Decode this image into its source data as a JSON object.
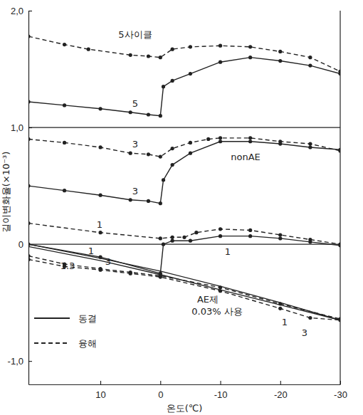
{
  "chart_data": {
    "type": "line",
    "x_label": "온도(℃)",
    "y_label": "길이변화율(×10⁻³)",
    "xlim": [
      22,
      -30
    ],
    "xticks": [
      10,
      0,
      -10,
      -20,
      -30
    ],
    "ylim": [
      -1.2,
      2.0
    ],
    "yticks": [
      {
        "value": 2,
        "label": "2,0"
      },
      {
        "value": 1,
        "label": "1,0"
      },
      0,
      {
        "value": -1,
        "label": "-1,0"
      }
    ],
    "grid": false,
    "hlines": [
      1,
      0
    ],
    "color": "#222222",
    "legend": "bottom-left",
    "legend_entries": [
      {
        "label": "동결",
        "line_style": "solid"
      },
      {
        "label": "융해",
        "line_style": "dashed"
      }
    ],
    "annotations": [
      {
        "text": "nonAE"
      },
      {
        "text": "AE제"
      },
      {
        "text": "0.03% 사용"
      },
      {
        "text": "1.3"
      }
    ],
    "series": [
      {
        "name": "5사이클",
        "line_style": "dashed",
        "marker": "circle",
        "x": [
          22,
          16,
          12,
          5,
          2,
          0,
          -2,
          -5,
          -10,
          -15,
          -20,
          -25,
          -30
        ],
        "values": [
          1.78,
          1.71,
          1.67,
          1.62,
          1.61,
          1.6,
          1.67,
          1.69,
          1.7,
          1.69,
          1.65,
          1.6,
          1.48
        ]
      },
      {
        "name": "5",
        "line_style": "solid",
        "marker": "circle",
        "x": [
          22,
          16,
          10,
          5,
          2,
          0,
          -0.5,
          -2,
          -5,
          -10,
          -15,
          -20,
          -25,
          -30
        ],
        "values": [
          1.22,
          1.19,
          1.16,
          1.13,
          1.11,
          1.1,
          1.35,
          1.4,
          1.46,
          1.56,
          1.6,
          1.57,
          1.53,
          1.46
        ]
      },
      {
        "name": "3",
        "line_style": "dashed",
        "marker": "circle",
        "x": [
          22,
          16,
          10,
          5,
          2,
          0,
          -2,
          -5,
          -8,
          -10,
          -15,
          -20,
          -25,
          -30
        ],
        "values": [
          0.9,
          0.87,
          0.83,
          0.78,
          0.77,
          0.75,
          0.82,
          0.87,
          0.9,
          0.91,
          0.91,
          0.88,
          0.86,
          0.8
        ]
      },
      {
        "name": "3",
        "line_style": "solid",
        "marker": "circle",
        "x": [
          22,
          16,
          10,
          5,
          2,
          0,
          -0.5,
          -2,
          -5,
          -10,
          -15,
          -20,
          -25,
          -30
        ],
        "values": [
          0.5,
          0.46,
          0.42,
          0.38,
          0.37,
          0.35,
          0.55,
          0.68,
          0.78,
          0.88,
          0.88,
          0.86,
          0.83,
          0.81
        ]
      },
      {
        "name": "1",
        "line_style": "dashed",
        "marker": "circle",
        "x": [
          22,
          10,
          0,
          -2,
          -4,
          -6,
          -10,
          -15,
          -20,
          -25,
          -30
        ],
        "values": [
          0.18,
          0.1,
          0.05,
          0.06,
          0.06,
          0.1,
          0.13,
          0.12,
          0.08,
          0.04,
          0.0
        ]
      },
      {
        "name": "1",
        "line_style": "solid",
        "marker": "circle",
        "x": [
          22,
          10,
          0,
          -0.5,
          -2,
          -5,
          -10,
          -15,
          -20,
          -25,
          -30
        ],
        "values": [
          0.0,
          -0.11,
          -0.25,
          0.0,
          0.03,
          0.03,
          0.07,
          0.07,
          0.05,
          0.02,
          -0.01
        ]
      },
      {
        "name": "1",
        "line_style": "solid",
        "marker": "none",
        "x": [
          22,
          10,
          0,
          -10,
          -20,
          -30
        ],
        "values": [
          0.0,
          -0.12,
          -0.23,
          -0.36,
          -0.5,
          -0.65
        ]
      },
      {
        "name": "3",
        "line_style": "solid",
        "marker": "none",
        "x": [
          22,
          10,
          0,
          -10,
          -20,
          -30
        ],
        "values": [
          -0.02,
          -0.14,
          -0.26,
          -0.39,
          -0.52,
          -0.65
        ]
      },
      {
        "name": "1",
        "line_style": "dashed",
        "marker": "circle",
        "x": [
          22,
          16,
          10,
          5,
          0,
          -10,
          -20,
          -30
        ],
        "values": [
          -0.1,
          -0.17,
          -0.21,
          -0.24,
          -0.27,
          -0.37,
          -0.51,
          -0.64
        ]
      },
      {
        "name": "3",
        "line_style": "dashed",
        "marker": "circle",
        "x": [
          22,
          16,
          10,
          5,
          0,
          -10,
          -20,
          -25,
          -30
        ],
        "values": [
          -0.13,
          -0.19,
          -0.22,
          -0.25,
          -0.28,
          -0.4,
          -0.55,
          -0.63,
          -0.65
        ]
      }
    ]
  }
}
